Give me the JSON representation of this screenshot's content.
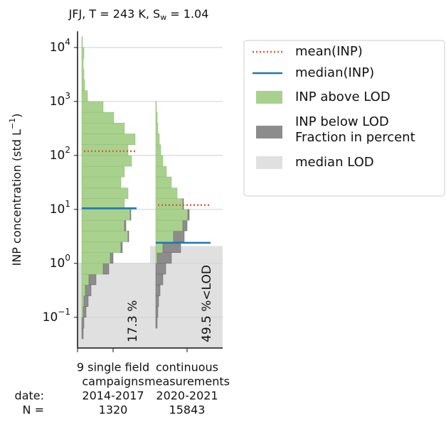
{
  "chart_data": {
    "type": "split-histogram",
    "title": [
      "JFJ, T = 243 K, S",
      "w",
      " = 1.04"
    ],
    "ylabel": [
      "INP concentration (std L",
      "−1",
      ")"
    ],
    "log_y": true,
    "grid": true,
    "ylim": [
      0.027,
      20000
    ],
    "yticks": [
      {
        "value": 0.1,
        "label": "10",
        "exponent": "−1"
      },
      {
        "value": 1,
        "label": "10",
        "exponent": "0"
      },
      {
        "value": 10,
        "label": "10",
        "exponent": "1"
      },
      {
        "value": 100,
        "label": "10",
        "exponent": "2"
      },
      {
        "value": 1000,
        "label": "10",
        "exponent": "3"
      },
      {
        "value": 10000,
        "label": "10",
        "exponent": "4"
      }
    ],
    "row_labels": [
      "date:",
      "N ="
    ],
    "legend": {
      "corner": "outside-right",
      "mean": {
        "name": "mean(INP)",
        "color": "#e4582e"
      },
      "median": {
        "name": "median(INP)",
        "color": "#1f77b4"
      },
      "above": {
        "name": "INP above LOD",
        "color": "#a9d18e"
      },
      "below": {
        "name": "INP below LOD",
        "note": "Fraction in percent",
        "color": "#8c8c8c"
      },
      "lod": {
        "name": "median LOD",
        "color": "#e0e0e0"
      }
    },
    "bins": [
      0.04,
      0.063,
      0.1,
      0.158,
      0.25,
      0.4,
      0.63,
      1,
      1.58,
      2.5,
      4,
      6.3,
      10,
      15.8,
      25,
      40,
      63,
      100,
      158,
      251,
      398,
      631,
      1000,
      1585,
      2512,
      3981,
      6310,
      10000,
      15849
    ],
    "groups": [
      {
        "label": [
          "9 single field",
          "campaigns"
        ],
        "date": "2014-2017",
        "N": 1320,
        "fraction": 17.3,
        "fraction_label": "17.3 %",
        "mean": 120,
        "median": 10.5,
        "median_lod": 1.0,
        "above": [
          0,
          0,
          2,
          3,
          5,
          10,
          30,
          40,
          55,
          65,
          60,
          68,
          60,
          65,
          55,
          60,
          70,
          65,
          75,
          60,
          45,
          30,
          8,
          4,
          3,
          2,
          3,
          1
        ],
        "below": [
          2,
          3,
          4,
          6,
          8,
          10,
          8,
          4,
          2,
          1,
          2,
          1,
          0,
          0,
          0,
          0,
          0,
          0,
          0,
          0,
          0,
          0,
          0,
          0,
          0,
          0,
          0,
          0
        ]
      },
      {
        "label": [
          "continuous",
          "measurements"
        ],
        "date": "2020-2021",
        "N": 15843,
        "fraction": 49.5,
        "fraction_label": "49.5 %<LOD",
        "mean": 12,
        "median": 2.4,
        "median_lod": 2.1,
        "above": [
          0,
          0,
          0,
          0,
          0,
          0,
          0,
          2,
          10,
          25,
          38,
          45,
          38,
          30,
          22,
          15,
          10,
          7,
          5,
          3,
          2,
          1,
          0,
          0,
          0,
          0,
          0,
          0
        ],
        "below": [
          0,
          2,
          3,
          4,
          6,
          10,
          14,
          20,
          25,
          15,
          6,
          2,
          1,
          0,
          0,
          0,
          0,
          0,
          0,
          0,
          0,
          0,
          0,
          0,
          0,
          0,
          0,
          0
        ]
      }
    ]
  }
}
